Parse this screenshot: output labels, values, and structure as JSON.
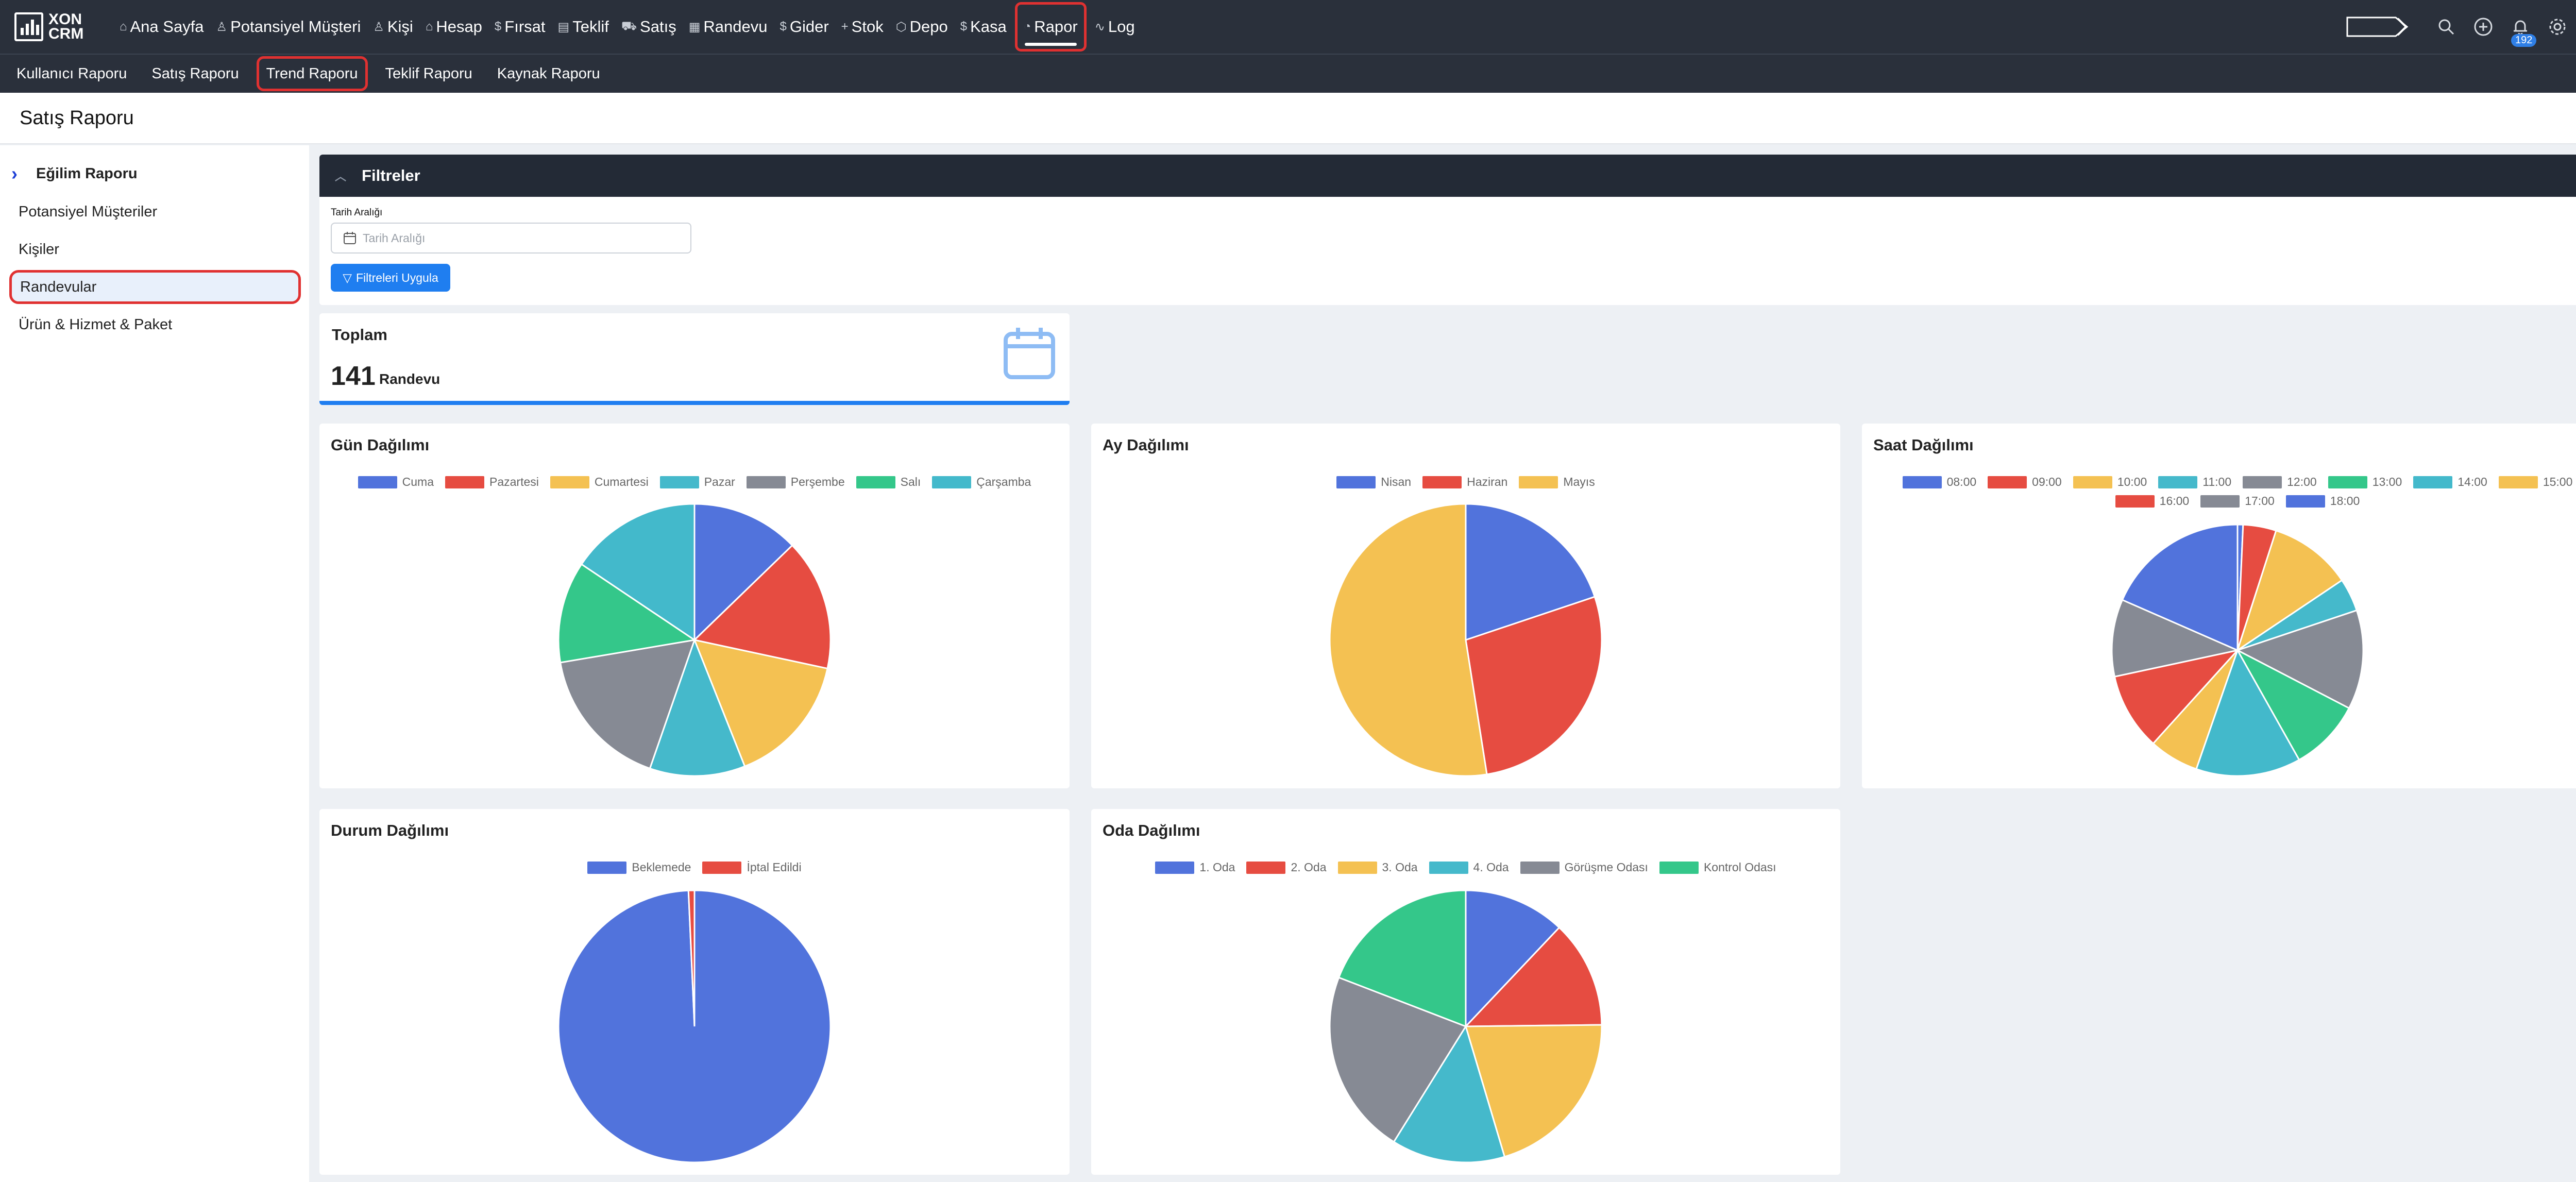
{
  "brand": {
    "line1": "XON",
    "line2": "CRM"
  },
  "topnav": {
    "items": [
      {
        "label": "Ana Sayfa",
        "icon": "home-icon",
        "glyph": "⌂"
      },
      {
        "label": "Potansiyel Müşteri",
        "icon": "person-icon",
        "glyph": "♙"
      },
      {
        "label": "Kişi",
        "icon": "people-icon",
        "glyph": "♙"
      },
      {
        "label": "Hesap",
        "icon": "building-icon",
        "glyph": "⌂"
      },
      {
        "label": "Fırsat",
        "icon": "dollar-icon",
        "glyph": "$"
      },
      {
        "label": "Teklif",
        "icon": "document-icon",
        "glyph": "▤"
      },
      {
        "label": "Satış",
        "icon": "cart-icon",
        "glyph": "⛟"
      },
      {
        "label": "Randevu",
        "icon": "calendar-icon",
        "glyph": "▦"
      },
      {
        "label": "Gider",
        "icon": "dollar-icon",
        "glyph": "$"
      },
      {
        "label": "Stok",
        "icon": "plus-icon",
        "glyph": "+"
      },
      {
        "label": "Depo",
        "icon": "box-icon",
        "glyph": "⬡"
      },
      {
        "label": "Kasa",
        "icon": "dollar-icon",
        "glyph": "$"
      },
      {
        "label": "Rapor",
        "icon": "pie-icon",
        "glyph": "◔",
        "active": true
      },
      {
        "label": "Log",
        "icon": "activity-icon",
        "glyph": "∿"
      }
    ],
    "notification_count": "192"
  },
  "subnav": {
    "items": [
      {
        "label": "Kullanıcı Raporu"
      },
      {
        "label": "Satış Raporu"
      },
      {
        "label": "Trend Raporu",
        "active": true
      },
      {
        "label": "Teklif Raporu"
      },
      {
        "label": "Kaynak Raporu"
      }
    ]
  },
  "page_title": "Satış Raporu",
  "sidebar": {
    "header": "Eğilim Raporu",
    "items": [
      {
        "label": "Potansiyel Müşteriler"
      },
      {
        "label": "Kişiler"
      },
      {
        "label": "Randevular",
        "active": true
      },
      {
        "label": "Ürün & Hizmet & Paket"
      }
    ]
  },
  "filters": {
    "title": "Filtreler",
    "date_label": "Tarih Aralığı",
    "date_placeholder": "Tarih Aralığı",
    "apply_label": "Filtreleri Uygula"
  },
  "total": {
    "title": "Toplam",
    "value": "141",
    "unit": "Randevu"
  },
  "colors": [
    "#5173dc",
    "#e64c41",
    "#f4c152",
    "#45b9cb",
    "#868a94",
    "#34c78a",
    "#43b9cb",
    "#f4c152",
    "#e64c41",
    "#868a94",
    "#5173dc"
  ],
  "chart_data": [
    {
      "type": "pie",
      "title": "Gün Dağılımı",
      "categories": [
        "Cuma",
        "Pazartesi",
        "Cumartesi",
        "Pazar",
        "Perşembe",
        "Salı",
        "Çarşamba"
      ],
      "values": [
        18,
        22,
        22,
        16,
        24,
        17,
        22
      ],
      "colors": [
        "#5173dc",
        "#e64c41",
        "#f4c152",
        "#45b9cb",
        "#868a94",
        "#34c78a",
        "#43b9cb"
      ]
    },
    {
      "type": "pie",
      "title": "Ay Dağılımı",
      "categories": [
        "Nisan",
        "Haziran",
        "Mayıs"
      ],
      "values": [
        28,
        39,
        74
      ],
      "colors": [
        "#5173dc",
        "#e64c41",
        "#f4c152"
      ]
    },
    {
      "type": "pie",
      "title": "Saat Dağılımı",
      "categories": [
        "08:00",
        "09:00",
        "10:00",
        "11:00",
        "12:00",
        "13:00",
        "14:00",
        "15:00",
        "16:00",
        "17:00",
        "18:00"
      ],
      "values": [
        1,
        6,
        15,
        6,
        18,
        13,
        19,
        9,
        14,
        14,
        26
      ],
      "colors": [
        "#5173dc",
        "#e64c41",
        "#f4c152",
        "#45b9cb",
        "#868a94",
        "#34c78a",
        "#43b9cb",
        "#f4c152",
        "#e64c41",
        "#868a94",
        "#5173dc"
      ]
    },
    {
      "type": "pie",
      "title": "Durum Dağılımı",
      "categories": [
        "Beklemede",
        "İptal Edildi"
      ],
      "values": [
        140,
        1
      ],
      "colors": [
        "#5173dc",
        "#e64c41"
      ]
    },
    {
      "type": "pie",
      "title": "Oda Dağılımı",
      "categories": [
        "1. Oda",
        "2. Oda",
        "3. Oda",
        "4. Oda",
        "Görüşme Odası",
        "Kontrol Odası"
      ],
      "values": [
        17,
        18,
        29,
        19,
        31,
        27
      ],
      "colors": [
        "#5173dc",
        "#e64c41",
        "#f4c152",
        "#45b9cb",
        "#868a94",
        "#34c78a"
      ]
    }
  ]
}
